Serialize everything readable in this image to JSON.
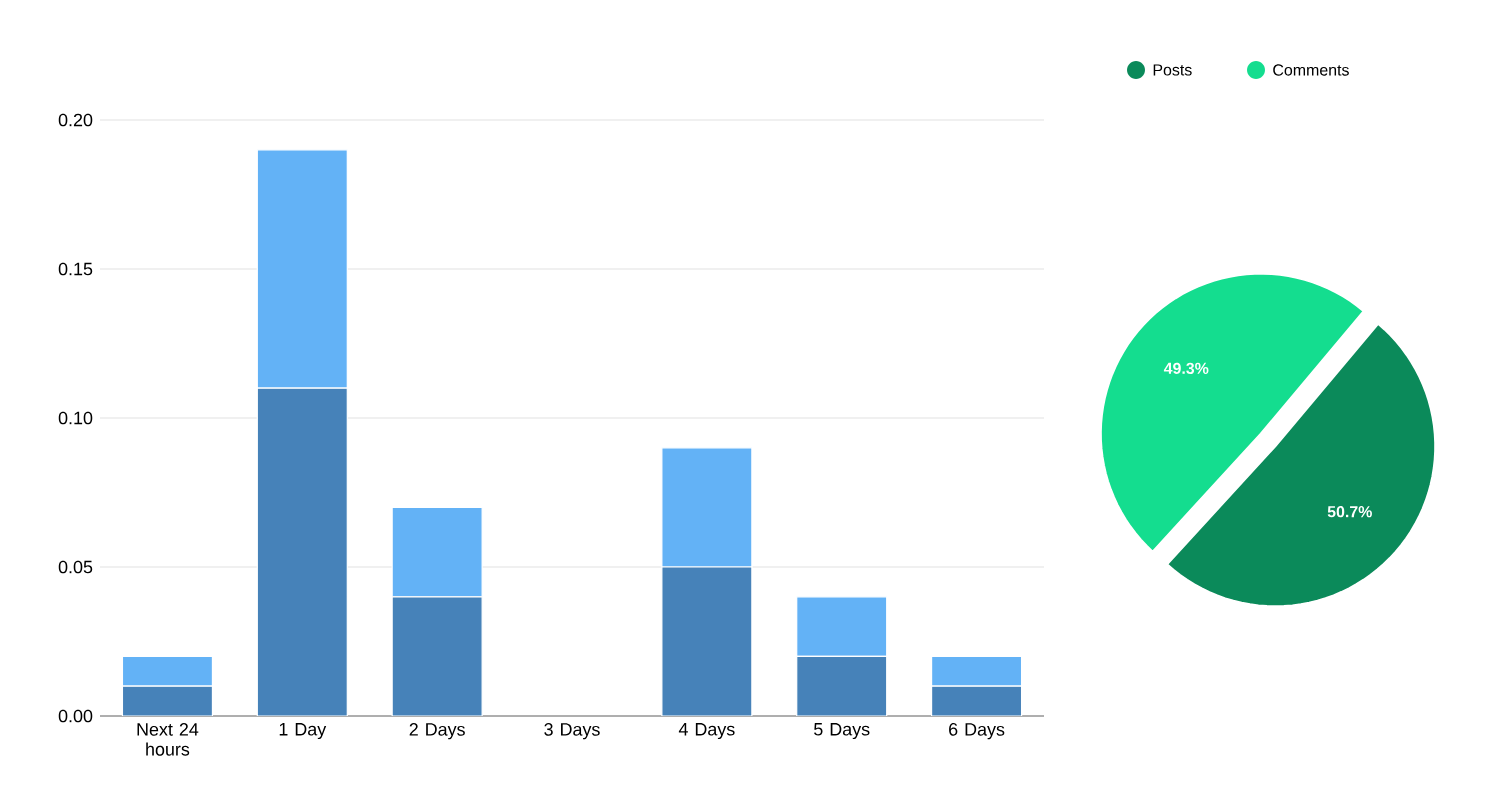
{
  "chart_data": [
    {
      "type": "bar",
      "stacked": true,
      "categories": [
        "Next 24 hours",
        "1 Day",
        "2 Days",
        "3 Days",
        "4 Days",
        "5 Days",
        "6 Days"
      ],
      "series": [
        {
          "color": "#4682b9",
          "values": [
            0.01,
            0.11,
            0.04,
            0,
            0.05,
            0.02,
            0.01
          ]
        },
        {
          "color": "#63b2f6",
          "values": [
            0.01,
            0.08,
            0.03,
            0,
            0.04,
            0.02,
            0.01
          ]
        }
      ],
      "ylim": [
        0,
        0.2
      ],
      "yticks": [
        {
          "value": 0,
          "label": "0.00"
        },
        {
          "value": 0.05,
          "label": "0.05"
        },
        {
          "value": 0.1,
          "label": "0.10"
        },
        {
          "value": 0.15,
          "label": "0.15"
        },
        {
          "value": 0.2,
          "label": "0.20"
        }
      ],
      "grid": "y"
    },
    {
      "type": "pie",
      "categories": [
        "Posts",
        "Comments"
      ],
      "values": [
        50.7,
        49.3
      ],
      "colors": [
        "#0b8a5a",
        "#14dd8f"
      ],
      "value_labels": [
        "50.7%",
        "49.3%"
      ],
      "legend": "top"
    }
  ]
}
